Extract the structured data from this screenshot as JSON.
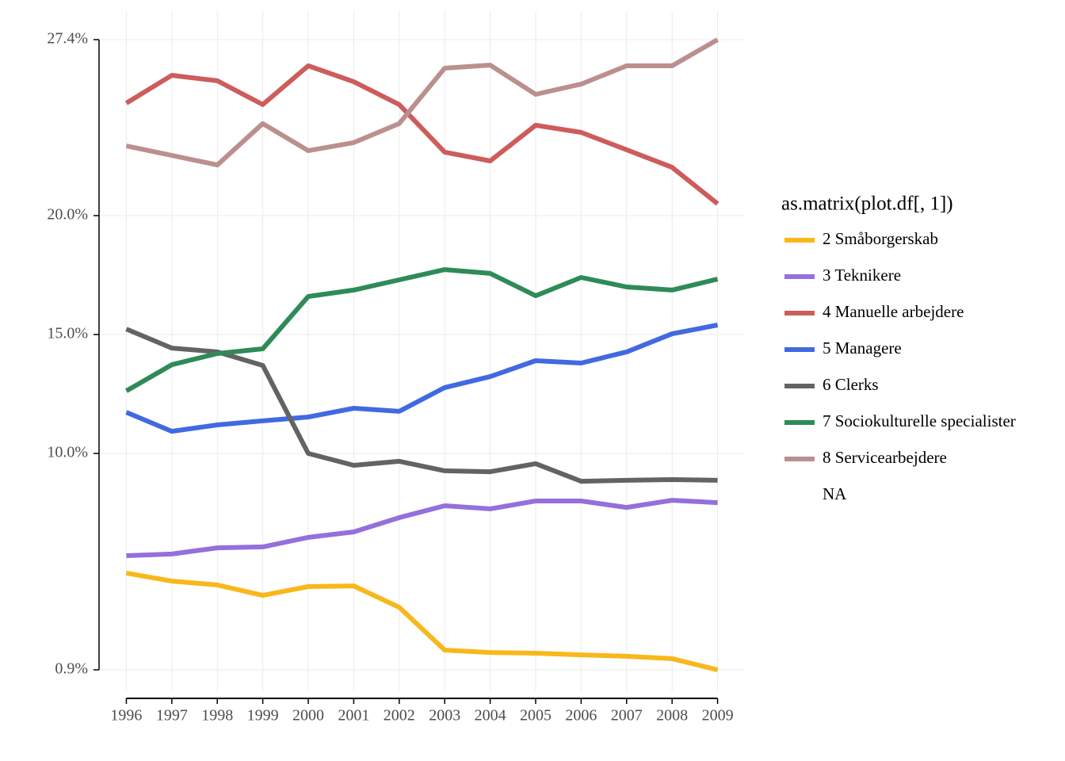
{
  "chart_data": {
    "type": "line",
    "x": [
      1996,
      1997,
      1998,
      1999,
      2000,
      2001,
      2002,
      2003,
      2004,
      2005,
      2006,
      2007,
      2008,
      2009
    ],
    "xlim": [
      1995.4,
      2009.6
    ],
    "xticks": [
      1996,
      1997,
      1998,
      1999,
      2000,
      2001,
      2002,
      2003,
      2004,
      2005,
      2006,
      2007,
      2008,
      2009
    ],
    "ylim": [
      0,
      28.6
    ],
    "yticks": [
      {
        "value": 0.9,
        "label": "0.9%"
      },
      {
        "value": 10,
        "label": "10.0%"
      },
      {
        "value": 15,
        "label": "15.0%"
      },
      {
        "value": 20,
        "label": "20.0%"
      },
      {
        "value": 27.4,
        "label": "27.4%"
      }
    ],
    "grid": true,
    "legend_title": "as.matrix(plot.df[, 1])",
    "series": [
      {
        "name": "2 Småborgerskab",
        "color": "#f8b81b",
        "values": [
          4.97,
          4.63,
          4.47,
          4.03,
          4.4,
          4.43,
          3.53,
          1.73,
          1.63,
          1.6,
          1.53,
          1.47,
          1.37,
          0.9
        ]
      },
      {
        "name": "3 Teknikere",
        "color": "#9370db",
        "values": [
          5.7,
          5.77,
          6.03,
          6.07,
          6.47,
          6.7,
          7.3,
          7.8,
          7.67,
          8.0,
          8.0,
          7.73,
          8.03,
          7.93
        ]
      },
      {
        "name": "4 Manuelle arbejdere",
        "color": "#cd5c5c",
        "values": [
          24.73,
          25.9,
          25.67,
          24.67,
          26.3,
          25.63,
          24.67,
          22.67,
          22.3,
          23.8,
          23.5,
          22.77,
          22.03,
          20.5
        ]
      },
      {
        "name": "5 Managere",
        "color": "#4169e1",
        "values": [
          11.73,
          10.93,
          11.2,
          11.37,
          11.53,
          11.9,
          11.77,
          12.77,
          13.23,
          13.9,
          13.8,
          14.27,
          15.03,
          15.4
        ]
      },
      {
        "name": "6 Clerks",
        "color": "#636363",
        "values": [
          15.23,
          14.43,
          14.27,
          13.7,
          10.0,
          9.5,
          9.67,
          9.27,
          9.23,
          9.57,
          8.83,
          8.87,
          8.9,
          8.87
        ]
      },
      {
        "name": "7 Sociokulturelle specialister",
        "color": "#2e8b57",
        "values": [
          12.63,
          13.73,
          14.2,
          14.4,
          16.6,
          16.87,
          17.3,
          17.73,
          17.57,
          16.63,
          17.4,
          17.0,
          16.87,
          17.33
        ]
      },
      {
        "name": "8 Servicearbejdere",
        "color": "#bc8f8f",
        "values": [
          22.93,
          22.53,
          22.13,
          23.87,
          22.73,
          23.07,
          23.87,
          26.2,
          26.33,
          25.1,
          25.53,
          26.3,
          26.3,
          27.4
        ]
      },
      {
        "name": "NA",
        "values": [
          null,
          null,
          null,
          null,
          null,
          null,
          null,
          null,
          null,
          null,
          null,
          null,
          null,
          null
        ]
      }
    ]
  }
}
